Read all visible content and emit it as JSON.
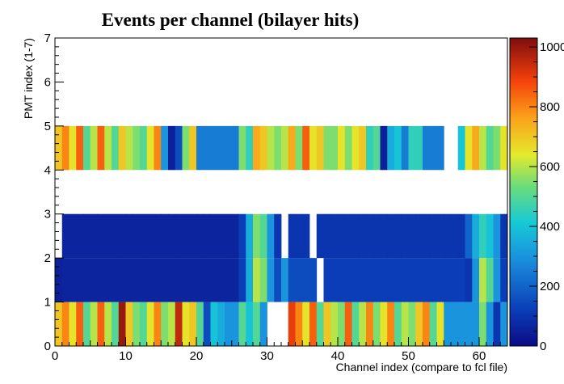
{
  "chart_data": {
    "type": "heatmap",
    "title": "Events per channel (bilayer hits)",
    "xlabel": "Channel index (compare to fcl file)",
    "ylabel": "PMT index (1-7)",
    "xlim": [
      0,
      64
    ],
    "ylim": [
      0,
      7
    ],
    "zlim": [
      0,
      1030
    ],
    "x_ticks": [
      "0",
      "10",
      "20",
      "30",
      "40",
      "50",
      "60"
    ],
    "y_ticks": [
      "0",
      "1",
      "2",
      "3",
      "4",
      "5",
      "6",
      "7"
    ],
    "z_ticks": [
      "0",
      "200",
      "400",
      "600",
      "800",
      "1000"
    ],
    "palette": "kBird/kRainbow (dark blue to dark red)",
    "grid": false,
    "rows": [
      {
        "pmt": 0,
        "values": [
          700,
          800,
          650,
          850,
          500,
          600,
          850,
          600,
          500,
          1000,
          700,
          550,
          500,
          650,
          800,
          550,
          600,
          950,
          650,
          700,
          500,
          150,
          400,
          350,
          300,
          300,
          500,
          400,
          500,
          300,
          null,
          null,
          null,
          900,
          800,
          650,
          850,
          500,
          700,
          600,
          550,
          850,
          500,
          600,
          800,
          550,
          650,
          800,
          500,
          600,
          550,
          700,
          800,
          500,
          650,
          300,
          300,
          300,
          300,
          300,
          550,
          300,
          100,
          300
        ]
      },
      {
        "pmt": 1,
        "values": [
          50,
          60,
          60,
          60,
          60,
          60,
          60,
          60,
          60,
          60,
          60,
          60,
          60,
          60,
          60,
          60,
          60,
          60,
          60,
          60,
          60,
          60,
          60,
          60,
          60,
          60,
          120,
          350,
          600,
          550,
          300,
          150,
          300,
          150,
          150,
          150,
          150,
          null,
          120,
          120,
          120,
          120,
          120,
          120,
          120,
          120,
          120,
          120,
          120,
          120,
          120,
          120,
          120,
          120,
          120,
          120,
          120,
          120,
          100,
          300,
          600,
          500,
          300,
          120
        ]
      },
      {
        "pmt": 2,
        "values": [
          null,
          60,
          60,
          60,
          60,
          60,
          60,
          60,
          60,
          60,
          60,
          60,
          60,
          60,
          60,
          60,
          60,
          60,
          60,
          60,
          60,
          60,
          60,
          60,
          60,
          60,
          120,
          350,
          550,
          500,
          300,
          100,
          null,
          100,
          100,
          100,
          null,
          100,
          100,
          100,
          100,
          100,
          100,
          100,
          100,
          100,
          100,
          100,
          100,
          100,
          100,
          100,
          100,
          100,
          100,
          100,
          100,
          100,
          200,
          350,
          450,
          400,
          300,
          100
        ]
      },
      {
        "pmt": 3,
        "values": []
      },
      {
        "pmt": 4,
        "values": [
          700,
          800,
          650,
          850,
          500,
          600,
          850,
          600,
          500,
          700,
          600,
          550,
          500,
          650,
          800,
          300,
          50,
          150,
          550,
          700,
          250,
          250,
          250,
          250,
          250,
          250,
          550,
          450,
          750,
          700,
          600,
          550,
          600,
          750,
          550,
          850,
          650,
          700,
          550,
          550,
          650,
          550,
          650,
          700,
          450,
          500,
          50,
          350,
          400,
          250,
          450,
          450,
          250,
          250,
          250,
          null,
          null,
          400,
          650,
          750,
          600,
          500,
          550,
          650
        ]
      },
      {
        "pmt": 5,
        "values": []
      },
      {
        "pmt": 6,
        "values": []
      }
    ]
  }
}
